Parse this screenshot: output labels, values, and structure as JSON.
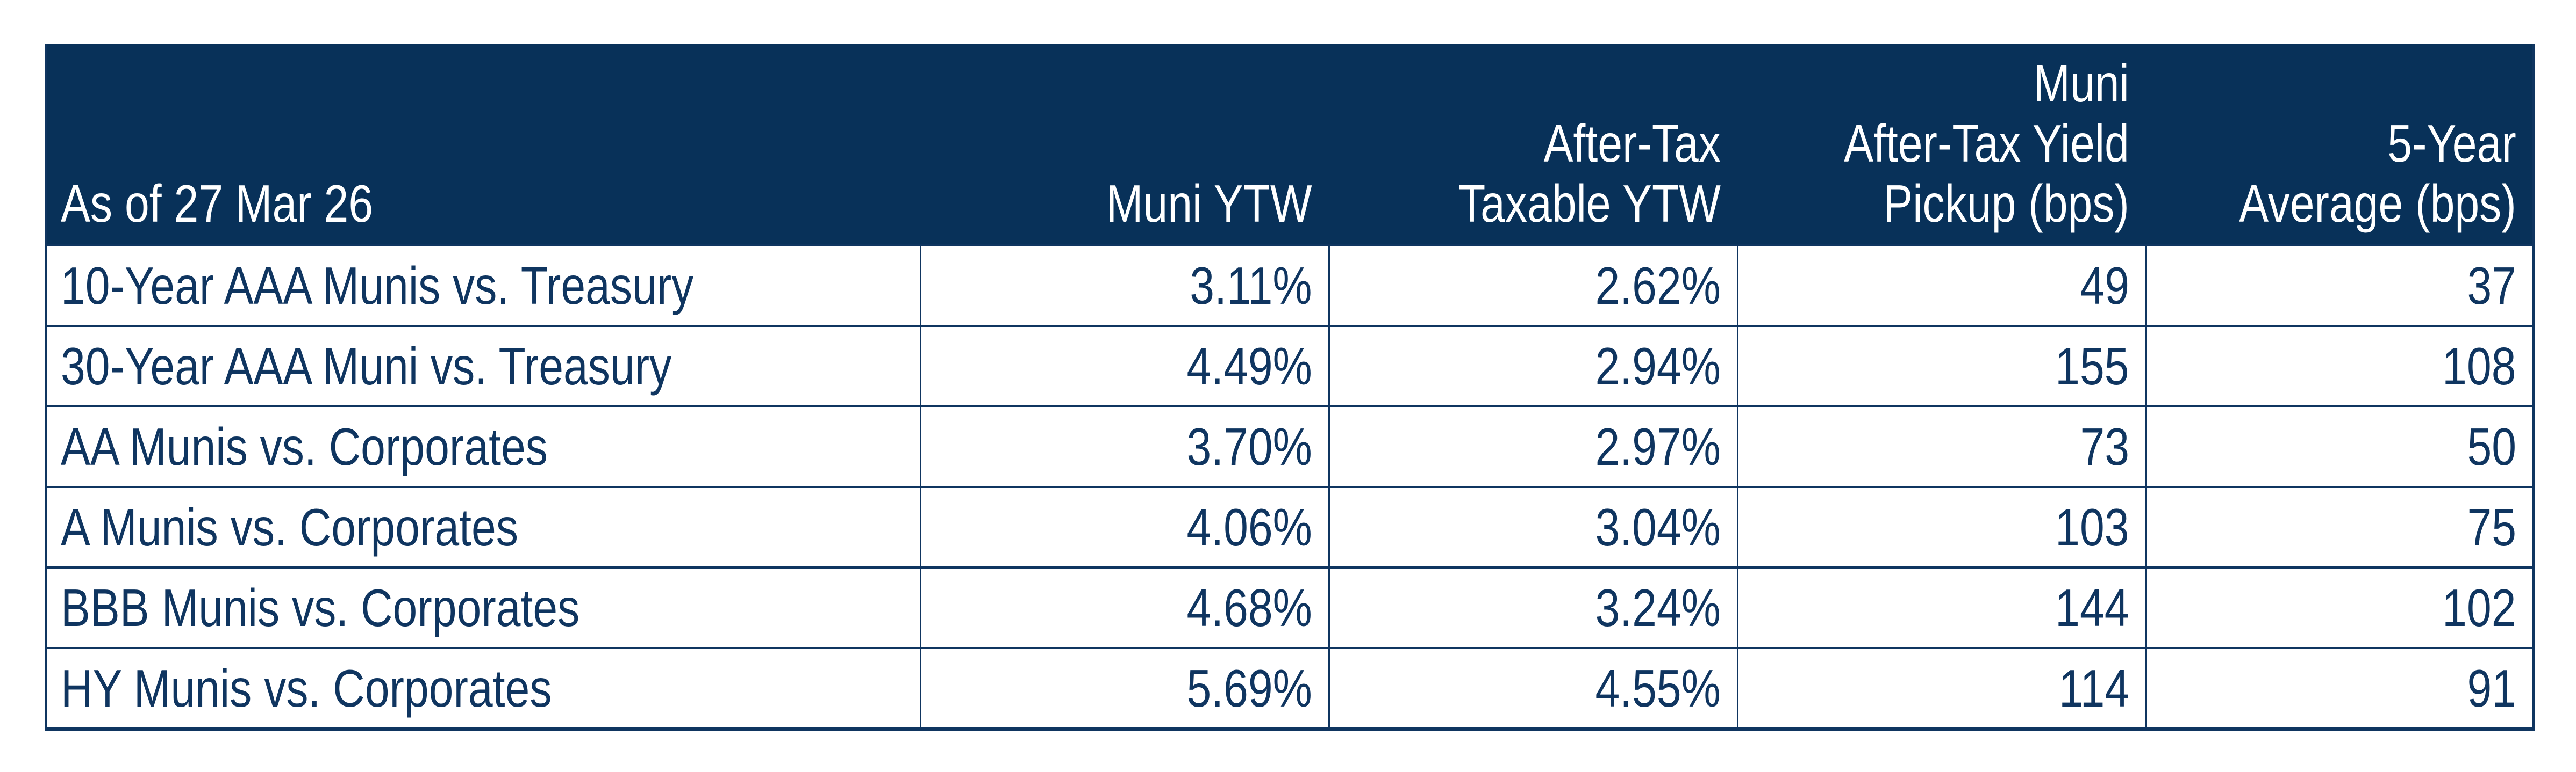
{
  "colors": {
    "navy_ink": "#0F3560",
    "header_background": "#083159",
    "header_text": "#FFFFFF",
    "row_background": "#FFFFFF"
  },
  "table": {
    "header": {
      "as_of": "As of 27 Mar 26",
      "col_muni_ytw": "Muni YTW",
      "col_after_tax": "After-Tax\nTaxable YTW",
      "col_pickup": "Muni\nAfter-Tax Yield\nPickup (bps)",
      "col_5yr": "5-Year\nAverage (bps)"
    },
    "rows": [
      {
        "label": "10-Year AAA Munis vs. Treasury",
        "muni_ytw": "3.11%",
        "after_tax_ytw": "2.62%",
        "pickup_bps": "49",
        "avg_5yr_bps": "37"
      },
      {
        "label": "30-Year AAA Muni vs. Treasury",
        "muni_ytw": "4.49%",
        "after_tax_ytw": "2.94%",
        "pickup_bps": "155",
        "avg_5yr_bps": "108"
      },
      {
        "label": "AA Munis vs. Corporates",
        "muni_ytw": "3.70%",
        "after_tax_ytw": "2.97%",
        "pickup_bps": "73",
        "avg_5yr_bps": "50"
      },
      {
        "label": "A Munis vs. Corporates",
        "muni_ytw": "4.06%",
        "after_tax_ytw": "3.04%",
        "pickup_bps": "103",
        "avg_5yr_bps": "75"
      },
      {
        "label": "BBB Munis vs. Corporates",
        "muni_ytw": "4.68%",
        "after_tax_ytw": "3.24%",
        "pickup_bps": "144",
        "avg_5yr_bps": "102"
      },
      {
        "label": "HY Munis vs. Corporates",
        "muni_ytw": "5.69%",
        "after_tax_ytw": "4.55%",
        "pickup_bps": "114",
        "avg_5yr_bps": "91"
      }
    ]
  },
  "chart_data": {
    "type": "table",
    "title": "Muni yield comparison as of 27 Mar 26",
    "columns": [
      "As of 27 Mar 26",
      "Muni YTW",
      "After-Tax Taxable YTW",
      "Muni After-Tax Yield Pickup (bps)",
      "5-Year Average (bps)"
    ],
    "rows": [
      [
        "10-Year AAA Munis vs. Treasury",
        "3.11%",
        "2.62%",
        49,
        37
      ],
      [
        "30-Year AAA Muni vs. Treasury",
        "4.49%",
        "2.94%",
        155,
        108
      ],
      [
        "AA Munis vs. Corporates",
        "3.70%",
        "2.97%",
        73,
        50
      ],
      [
        "A Munis vs. Corporates",
        "4.06%",
        "3.04%",
        103,
        75
      ],
      [
        "BBB Munis vs. Corporates",
        "4.68%",
        "3.24%",
        144,
        102
      ],
      [
        "HY Munis vs. Corporates",
        "5.69%",
        "4.55%",
        114,
        91
      ]
    ],
    "series": [
      {
        "name": "Muni YTW (%)",
        "values": [
          3.11,
          4.49,
          3.7,
          4.06,
          4.68,
          5.69
        ]
      },
      {
        "name": "After-Tax Taxable YTW (%)",
        "values": [
          2.62,
          2.94,
          2.97,
          3.04,
          3.24,
          4.55
        ]
      },
      {
        "name": "Muni After-Tax Yield Pickup (bps)",
        "values": [
          49,
          155,
          73,
          103,
          144,
          114
        ]
      },
      {
        "name": "5-Year Average (bps)",
        "values": [
          37,
          108,
          50,
          75,
          102,
          91
        ]
      }
    ],
    "categories": [
      "10-Year AAA Munis vs. Treasury",
      "30-Year AAA Muni vs. Treasury",
      "AA Munis vs. Corporates",
      "A Munis vs. Corporates",
      "BBB Munis vs. Corporates",
      "HY Munis vs. Corporates"
    ]
  }
}
